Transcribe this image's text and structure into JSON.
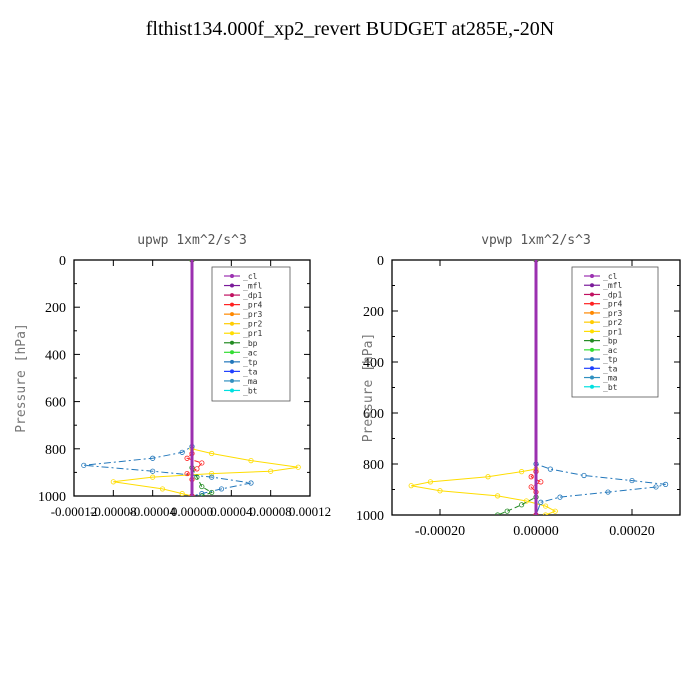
{
  "title": "flthist134.000f_xp2_revert  BUDGET at285E,-20N",
  "legend_labels": [
    "_cl",
    "_mfl",
    "_dp1",
    "_pr4",
    "_pr3",
    "_pr2",
    "_pr1",
    "_bp",
    "_ac",
    "_tp",
    "_ta",
    "_ma",
    "_bt"
  ],
  "series_colors": [
    "#9b30b0",
    "#7a1a9a",
    "#c01060",
    "#ff2020",
    "#ff8800",
    "#ffcc00",
    "#ffdd00",
    "#228b22",
    "#33dd33",
    "#2277bb",
    "#2040ff",
    "#3090c0",
    "#00e0e0"
  ],
  "chart_data": [
    {
      "type": "line",
      "title": "upwp   1xm^2/s^3",
      "ylabel": "Pressure [hPa]",
      "xlabel": "",
      "xlim": [
        -0.00012,
        0.00012
      ],
      "ylim": [
        1000,
        0
      ],
      "xticks": [
        "-0.00012",
        "-0.00008",
        "-0.00004",
        "0.00000",
        "0.00004",
        "0.00008",
        "0.00012"
      ],
      "yticks": [
        "0",
        "200",
        "400",
        "600",
        "800",
        "1000"
      ],
      "legend": "top-right",
      "series": [
        {
          "name": "_pr1",
          "style": "solid",
          "points": [
            [
              0,
              0
            ],
            [
              0,
              800
            ],
            [
              2e-05,
              820
            ],
            [
              6e-05,
              850
            ],
            [
              0.000108,
              878
            ],
            [
              8e-05,
              895
            ],
            [
              2e-05,
              905
            ],
            [
              -4e-05,
              920
            ],
            [
              -8e-05,
              940
            ],
            [
              -3e-05,
              970
            ],
            [
              -1e-05,
              990
            ],
            [
              0,
              1000
            ]
          ]
        },
        {
          "name": "_tp",
          "style": "dashdot",
          "points": [
            [
              0,
              0
            ],
            [
              0,
              790
            ],
            [
              -1e-05,
              815
            ],
            [
              -4e-05,
              840
            ],
            [
              -0.00011,
              870
            ],
            [
              -4e-05,
              895
            ],
            [
              2e-05,
              920
            ],
            [
              6e-05,
              945
            ],
            [
              3e-05,
              970
            ],
            [
              1e-05,
              990
            ],
            [
              0,
              1000
            ]
          ]
        },
        {
          "name": "_pr4",
          "style": "dashed",
          "points": [
            [
              0,
              0
            ],
            [
              0,
              820
            ],
            [
              -5e-06,
              840
            ],
            [
              1e-05,
              860
            ],
            [
              5e-06,
              885
            ],
            [
              -5e-06,
              905
            ],
            [
              0,
              930
            ],
            [
              0,
              1000
            ]
          ]
        },
        {
          "name": "_bp",
          "style": "dashed",
          "points": [
            [
              0,
              0
            ],
            [
              0,
              880
            ],
            [
              5e-06,
              920
            ],
            [
              1e-05,
              960
            ],
            [
              2e-05,
              985
            ],
            [
              1e-05,
              1000
            ]
          ]
        },
        {
          "name": "_cl",
          "style": "solid",
          "points": [
            [
              0,
              0
            ],
            [
              0,
              1000
            ]
          ]
        }
      ]
    },
    {
      "type": "line",
      "title": "vpwp   1xm^2/s^3",
      "ylabel": "Pressure [hPa]",
      "xlabel": "",
      "xlim": [
        -0.0003,
        0.0003
      ],
      "ylim": [
        1000,
        0
      ],
      "xticks": [
        "-0.00020",
        "0.00000",
        "0.00020"
      ],
      "yticks": [
        "0",
        "200",
        "400",
        "600",
        "800",
        "1000"
      ],
      "legend": "top-right",
      "series": [
        {
          "name": "_pr1",
          "style": "solid",
          "points": [
            [
              0,
              0
            ],
            [
              0,
              820
            ],
            [
              -3e-05,
              830
            ],
            [
              -0.0001,
              850
            ],
            [
              -0.00022,
              870
            ],
            [
              -0.00026,
              885
            ],
            [
              -0.0002,
              905
            ],
            [
              -8e-05,
              925
            ],
            [
              -2e-05,
              945
            ],
            [
              2e-05,
              965
            ],
            [
              4e-05,
              985
            ],
            [
              2e-05,
              1000
            ]
          ]
        },
        {
          "name": "_tp",
          "style": "dashdot",
          "points": [
            [
              0,
              0
            ],
            [
              0,
              800
            ],
            [
              3e-05,
              820
            ],
            [
              0.0001,
              845
            ],
            [
              0.0002,
              865
            ],
            [
              0.00027,
              880
            ],
            [
              0.00025,
              890
            ],
            [
              0.00015,
              910
            ],
            [
              5e-05,
              930
            ],
            [
              1e-05,
              950
            ],
            [
              0,
              1000
            ]
          ]
        },
        {
          "name": "_pr4",
          "style": "dashed",
          "points": [
            [
              0,
              0
            ],
            [
              0,
              830
            ],
            [
              -1e-05,
              850
            ],
            [
              1e-05,
              870
            ],
            [
              -1e-05,
              890
            ],
            [
              0,
              910
            ],
            [
              0,
              1000
            ]
          ]
        },
        {
          "name": "_bp",
          "style": "dashed",
          "points": [
            [
              0,
              0
            ],
            [
              0,
              930
            ],
            [
              -3e-05,
              960
            ],
            [
              -6e-05,
              985
            ],
            [
              -8e-05,
              1000
            ]
          ]
        },
        {
          "name": "_cl",
          "style": "solid",
          "points": [
            [
              0,
              0
            ],
            [
              0,
              1000
            ]
          ]
        }
      ]
    }
  ]
}
